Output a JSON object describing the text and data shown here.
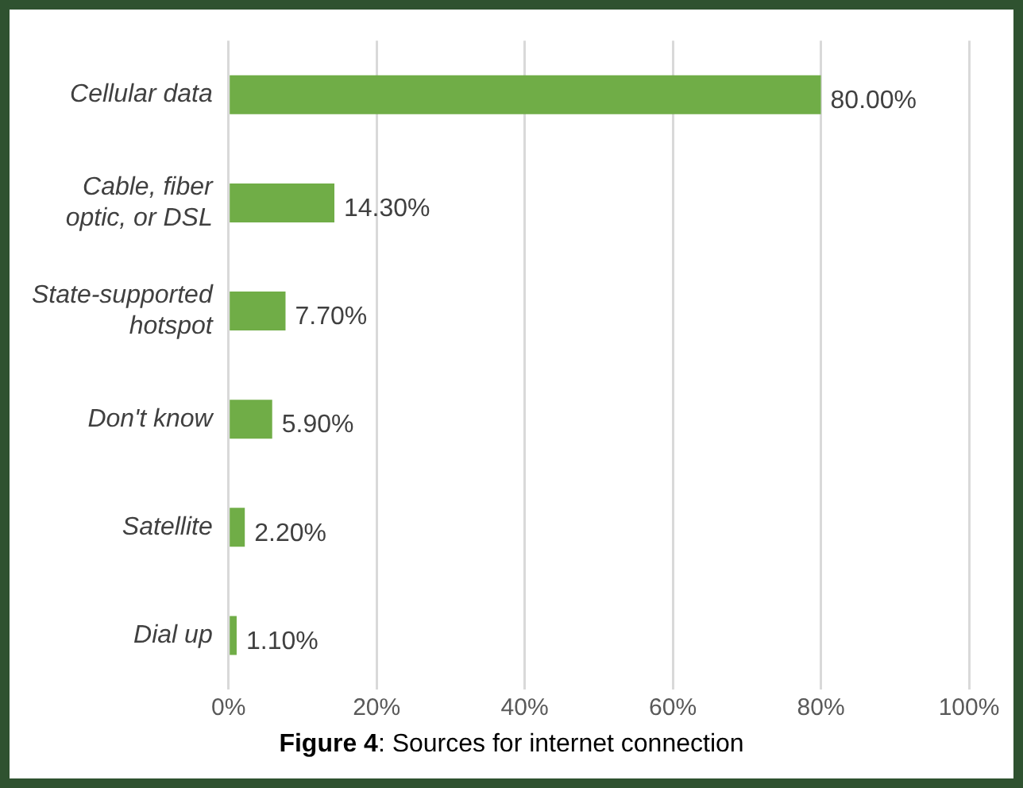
{
  "chart_data": {
    "type": "bar",
    "orientation": "horizontal",
    "title": "Figure 4: Sources for internet connection",
    "categories": [
      "Cellular data",
      "Cable, fiber optic, or DSL",
      "State-supported hotspot",
      "Don't know",
      "Satellite",
      "Dial up"
    ],
    "values": [
      80,
      14.3,
      7.7,
      5.9,
      2.2,
      1.1
    ],
    "value_labels": [
      "80.00%",
      "14.30%",
      "7.70%",
      "5.90%",
      "2.20%",
      "1.10%"
    ],
    "color": "#70ad47",
    "xlim": [
      0,
      100
    ],
    "xticks": [
      {
        "value": 0,
        "label": "0%"
      },
      {
        "value": 20,
        "label": "20%"
      },
      {
        "value": 40,
        "label": "40%"
      },
      {
        "value": 60,
        "label": "60%"
      },
      {
        "value": 80,
        "label": "80%"
      },
      {
        "value": 100,
        "label": "100%"
      }
    ],
    "grid": "x",
    "legend": false
  }
}
